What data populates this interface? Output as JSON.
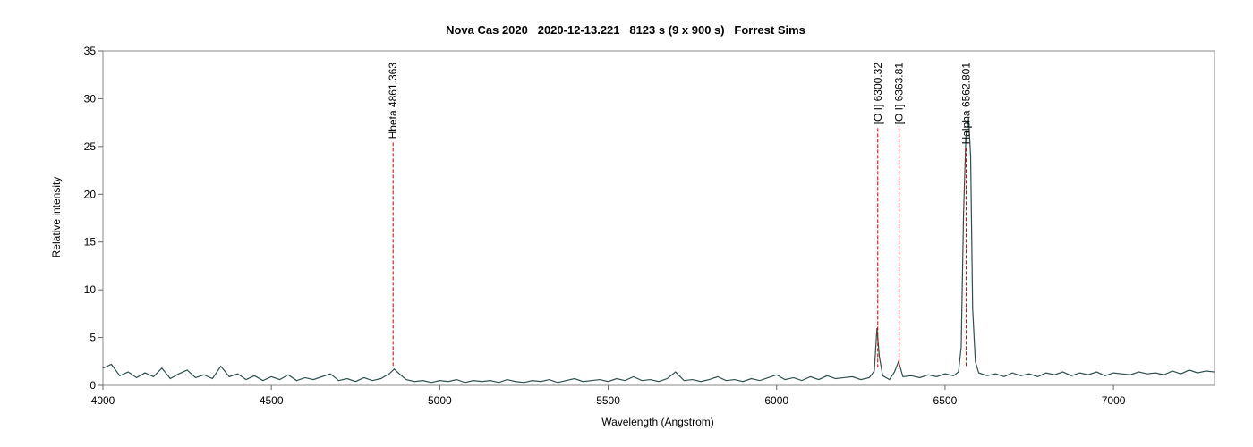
{
  "chart_data": {
    "type": "line",
    "title": "Nova Cas 2020   2020-12-13.221   8123 s (9 x 900 s)   Forrest Sims",
    "x_label": "Wavelength (Angstrom)",
    "y_label": "Relative intensity",
    "color": "#2f4f4f",
    "xlim": [
      4000,
      7300
    ],
    "xticks": [
      4000,
      4500,
      5000,
      5500,
      6000,
      6500,
      7000
    ],
    "ylim": [
      0,
      35
    ],
    "yticks": [
      0,
      5,
      10,
      15,
      20,
      25,
      30,
      35
    ],
    "annotations": [
      {
        "label": "Hbeta 4861.363",
        "x": 4861.363
      },
      {
        "label": "[O I] 6300.32",
        "x": 6300.32
      },
      {
        "label": "[O I] 6363.81",
        "x": 6363.81
      },
      {
        "label": "Halpha 6562.801",
        "x": 6562.801
      }
    ],
    "annotation_color": "#cc0000",
    "x": [
      4000,
      4025,
      4050,
      4075,
      4100,
      4125,
      4150,
      4175,
      4200,
      4225,
      4250,
      4275,
      4300,
      4325,
      4350,
      4375,
      4400,
      4425,
      4450,
      4475,
      4500,
      4525,
      4550,
      4575,
      4600,
      4625,
      4650,
      4675,
      4700,
      4725,
      4750,
      4775,
      4800,
      4825,
      4850,
      4865,
      4880,
      4900,
      4925,
      4950,
      4975,
      5000,
      5025,
      5050,
      5075,
      5100,
      5125,
      5150,
      5175,
      5200,
      5225,
      5250,
      5275,
      5300,
      5325,
      5350,
      5375,
      5400,
      5425,
      5450,
      5475,
      5500,
      5525,
      5550,
      5575,
      5600,
      5625,
      5650,
      5675,
      5700,
      5725,
      5750,
      5775,
      5800,
      5825,
      5850,
      5875,
      5900,
      5925,
      5950,
      5975,
      6000,
      6025,
      6050,
      6075,
      6100,
      6125,
      6150,
      6175,
      6200,
      6225,
      6250,
      6275,
      6290,
      6298,
      6305,
      6315,
      6335,
      6350,
      6362,
      6375,
      6400,
      6425,
      6450,
      6475,
      6500,
      6525,
      6540,
      6548,
      6555,
      6562,
      6570,
      6576,
      6582,
      6590,
      6600,
      6625,
      6650,
      6675,
      6700,
      6725,
      6750,
      6775,
      6800,
      6825,
      6850,
      6875,
      6900,
      6925,
      6950,
      6975,
      7000,
      7025,
      7050,
      7075,
      7100,
      7125,
      7150,
      7175,
      7200,
      7225,
      7250,
      7275,
      7300
    ],
    "values": [
      1.8,
      2.2,
      1.0,
      1.4,
      0.8,
      1.3,
      0.9,
      1.8,
      0.7,
      1.2,
      1.6,
      0.8,
      1.1,
      0.7,
      2.0,
      0.9,
      1.2,
      0.6,
      1.0,
      0.5,
      0.9,
      0.6,
      1.1,
      0.5,
      0.8,
      0.6,
      0.9,
      1.2,
      0.5,
      0.7,
      0.4,
      0.8,
      0.5,
      0.7,
      1.2,
      1.7,
      1.2,
      0.6,
      0.4,
      0.5,
      0.3,
      0.5,
      0.4,
      0.6,
      0.3,
      0.5,
      0.4,
      0.5,
      0.3,
      0.6,
      0.4,
      0.3,
      0.5,
      0.4,
      0.6,
      0.3,
      0.5,
      0.7,
      0.4,
      0.5,
      0.6,
      0.4,
      0.7,
      0.5,
      0.9,
      0.5,
      0.6,
      0.4,
      0.7,
      1.4,
      0.5,
      0.6,
      0.4,
      0.6,
      0.9,
      0.5,
      0.6,
      0.4,
      0.7,
      0.5,
      0.8,
      1.1,
      0.6,
      0.8,
      0.5,
      0.9,
      0.6,
      1.0,
      0.7,
      0.8,
      0.9,
      0.6,
      0.8,
      1.5,
      6.0,
      3.0,
      1.0,
      0.6,
      1.4,
      2.5,
      0.9,
      1.0,
      0.8,
      1.1,
      0.9,
      1.2,
      1.0,
      1.4,
      4.0,
      18.0,
      26.0,
      28.0,
      24.0,
      8.0,
      2.5,
      1.3,
      1.0,
      1.2,
      0.9,
      1.3,
      1.0,
      1.2,
      0.9,
      1.3,
      1.1,
      1.4,
      1.0,
      1.3,
      1.1,
      1.4,
      1.0,
      1.3,
      1.2,
      1.1,
      1.4,
      1.2,
      1.3,
      1.1,
      1.5,
      1.2,
      1.6,
      1.3,
      1.5,
      1.4
    ]
  }
}
